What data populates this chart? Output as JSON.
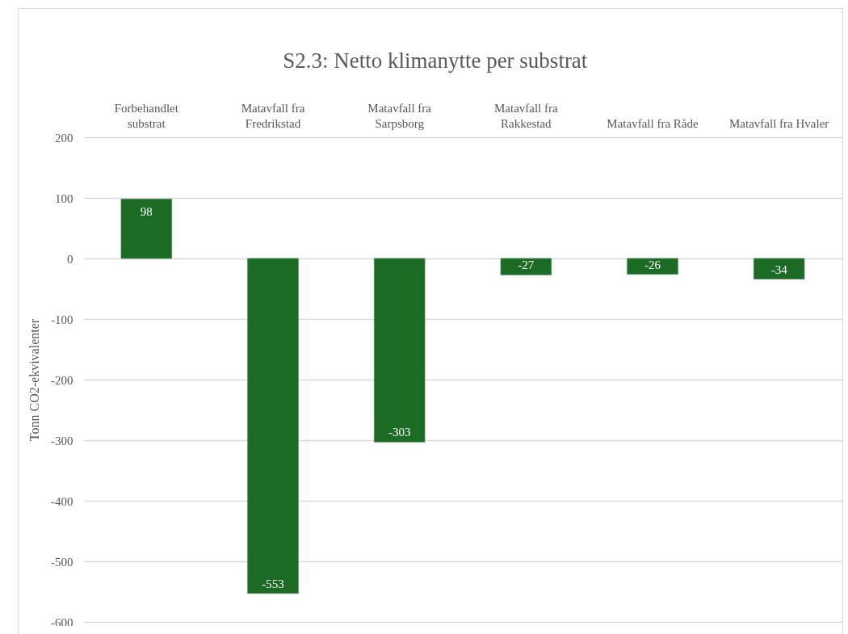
{
  "chart_data": {
    "type": "bar",
    "title": "S2.3: Netto klimanytte per substrat",
    "ylabel": "Tonn CO2-ekvivalenter",
    "categories": [
      "Forbehandlet substrat",
      "Matavfall fra Fredrikstad",
      "Matavfall fra Sarpsborg",
      "Matavfall fra Rakkestad",
      "Matavfall fra Råde",
      "Matavfall fra Hvaler"
    ],
    "values": [
      98,
      -553,
      -303,
      -27,
      -26,
      -34
    ],
    "color": "#1b6b25",
    "ylim": [
      -600,
      200
    ],
    "yticks": [
      -600,
      -500,
      -400,
      -300,
      -200,
      -100,
      0,
      100,
      200
    ],
    "grid": "y",
    "data_labels": true
  }
}
